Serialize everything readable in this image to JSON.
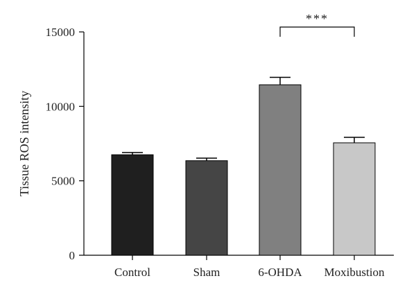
{
  "chart_data": {
    "type": "bar",
    "ylabel": "Tissue ROS intensity",
    "xlabel": "",
    "ylim": [
      0,
      15000
    ],
    "yticks": [
      0,
      5000,
      10000,
      15000
    ],
    "ytick_labels": [
      "0",
      "5000",
      "10000",
      "15000"
    ],
    "categories": [
      "Control",
      "Sham",
      "6-OHDA",
      "Moxibustion"
    ],
    "values": [
      6750,
      6350,
      11450,
      7550
    ],
    "errors": [
      150,
      170,
      500,
      370
    ],
    "colors": [
      "#1f1f1f",
      "#454545",
      "#808080",
      "#c8c8c8"
    ],
    "grid": false,
    "legend": "none",
    "significance": [
      {
        "from": 2,
        "to": 3,
        "label": "***"
      }
    ]
  }
}
